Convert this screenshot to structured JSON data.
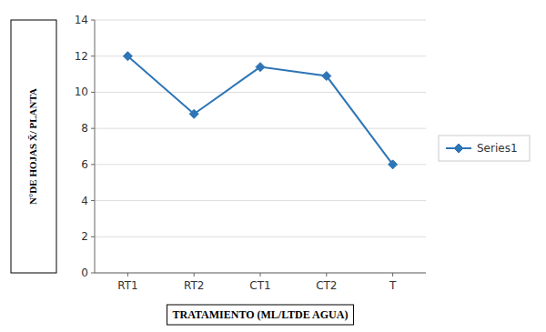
{
  "chart_data": {
    "type": "line",
    "xlabel": "TRATAMIENTO (ML/LTDE AGUA)",
    "ylabel": "N°DE HOJAS X̄/ PLANTA",
    "categories": [
      "RT1",
      "RT2",
      "CT1",
      "CT2",
      "T"
    ],
    "series": [
      {
        "name": "Series1",
        "color": "#2E75B6",
        "marker": "diamond",
        "values": [
          12.0,
          8.8,
          11.4,
          10.9,
          6.0
        ]
      }
    ],
    "ylim": [
      0,
      14
    ],
    "yticks": [
      0,
      2,
      4,
      6,
      8,
      10,
      12,
      14
    ],
    "grid": true,
    "legend": "right"
  }
}
